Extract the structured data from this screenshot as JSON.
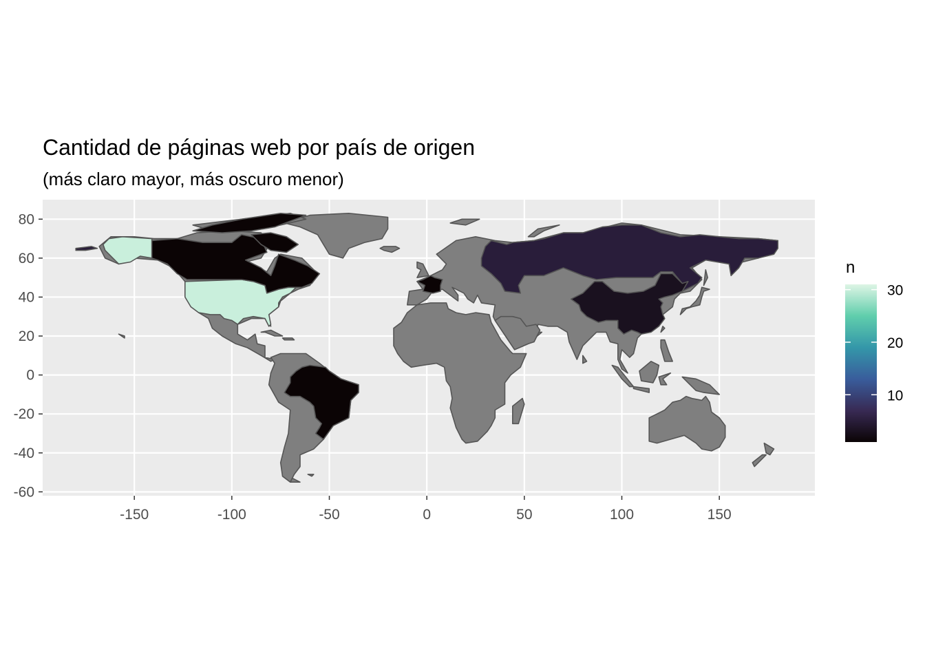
{
  "chart_data": {
    "type": "choropleth",
    "title": "Cantidad de páginas web por país de origen",
    "subtitle": "(más claro mayor, más oscuro menor)",
    "xlim": [
      -197,
      199
    ],
    "ylim": [
      -62,
      90
    ],
    "x_ticks": [
      -150,
      -100,
      -50,
      0,
      50,
      100,
      150
    ],
    "y_ticks": [
      80,
      60,
      40,
      20,
      0,
      -20,
      -40,
      -60
    ],
    "x_tick_labels": [
      "-150",
      "-100",
      "-50",
      "0",
      "50",
      "100",
      "150"
    ],
    "y_tick_labels": [
      "80",
      "60",
      "40",
      "20",
      "0",
      "-20",
      "-40",
      "-60"
    ],
    "legend": {
      "title": "n",
      "position": "right",
      "range": [
        1,
        31
      ],
      "breaks": [
        10,
        20,
        30
      ],
      "break_labels": [
        "10",
        "20",
        "30"
      ],
      "colors": [
        "#0b0405",
        "#382a54",
        "#395d9c",
        "#3497a9",
        "#60ceac",
        "#def5e5"
      ]
    },
    "na_color": "#7f7f7f",
    "border_color": "#555555",
    "panel_background": "#ebebeb",
    "grid": true,
    "highlighted_regions": [
      {
        "region": "United States",
        "n": 30
      },
      {
        "region": "Russia",
        "n": 5
      },
      {
        "region": "China",
        "n": 3
      },
      {
        "region": "Canada",
        "n": 1
      },
      {
        "region": "Brazil",
        "n": 1
      },
      {
        "region": "France",
        "n": 1
      }
    ]
  }
}
